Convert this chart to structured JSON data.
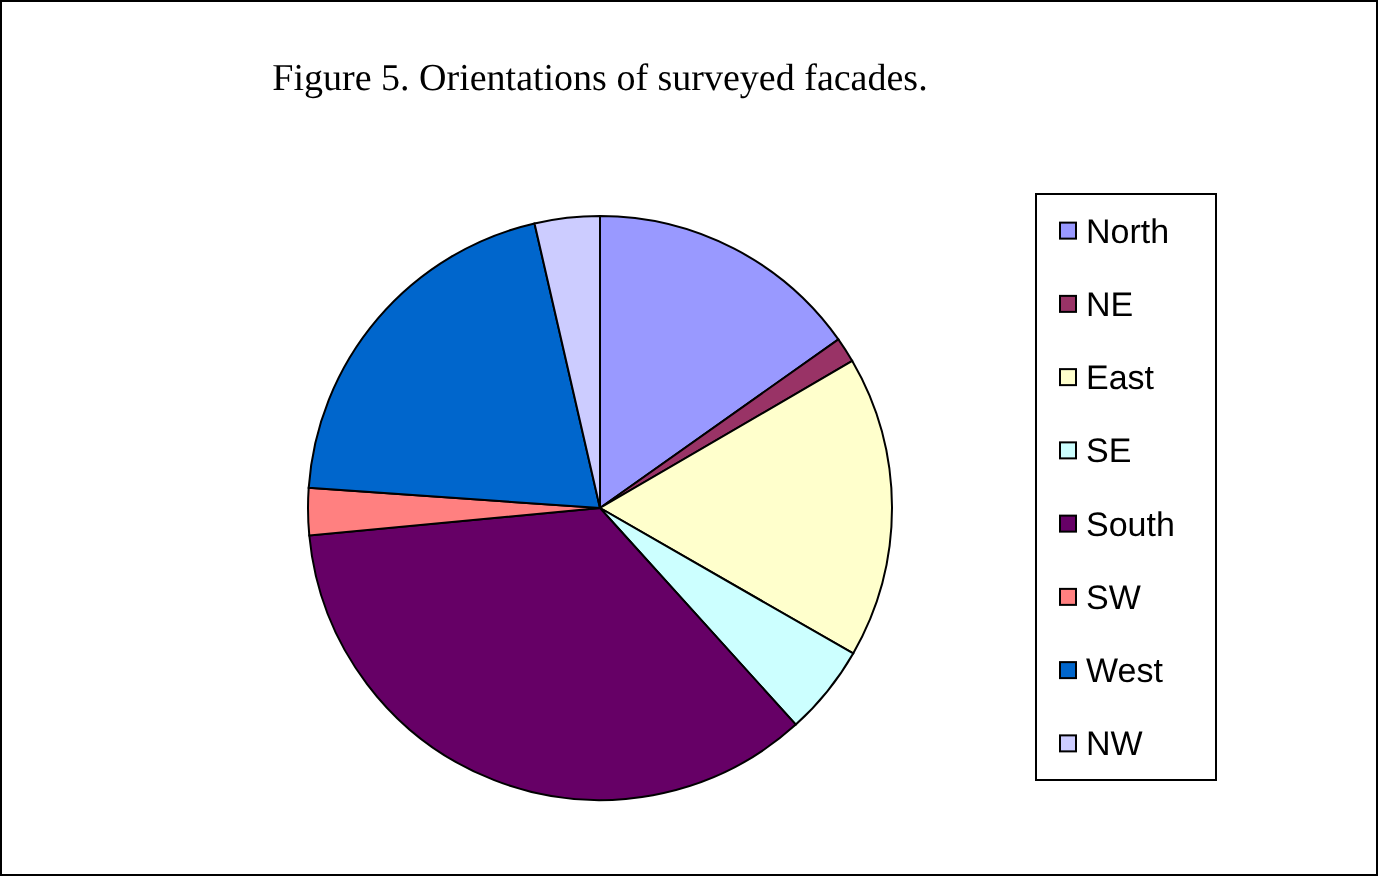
{
  "chart_data": {
    "type": "pie",
    "title": "Figure 5. Orientations of surveyed facades.",
    "categories": [
      "North",
      "NE",
      "East",
      "SE",
      "South",
      "SW",
      "West",
      "NW"
    ],
    "values": [
      15.2,
      1.4,
      16.7,
      5,
      35.2,
      2.6,
      20.3,
      3.6
    ],
    "colors": [
      "#9999ff",
      "#993366",
      "#ffffcc",
      "#ccffff",
      "#660066",
      "#ff8080",
      "#0066cc",
      "#ccccff"
    ],
    "legend": "right"
  }
}
